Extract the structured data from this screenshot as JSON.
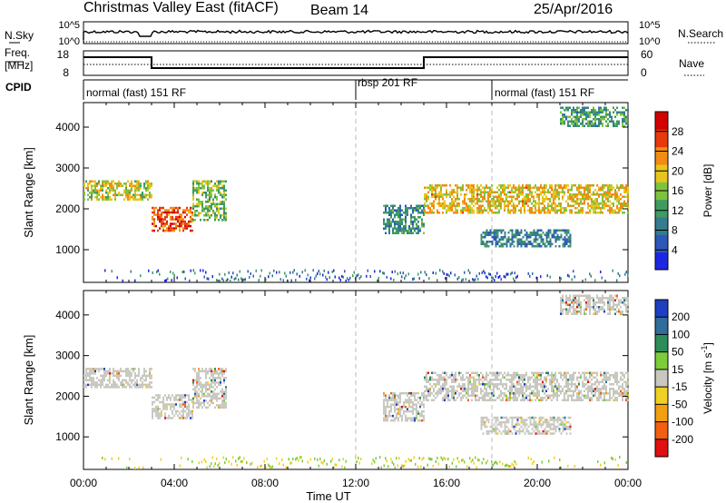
{
  "header": {
    "title": "Christmas Valley East (fitACF)",
    "beam": "Beam 14",
    "date": "25/Apr/2016"
  },
  "top_panels": {
    "nsky_label": "N.Sky",
    "nsky_ticks": [
      "10^5",
      "10^0"
    ],
    "nsearch_label": "N.Search",
    "nsearch_ticks": [
      "10^5",
      "10^0"
    ],
    "freq_label": "Freq.",
    "freq_unit": "[MHz]",
    "freq_ticks": [
      "18",
      "8"
    ],
    "nave_label": "Nave",
    "nave_ticks": [
      "60",
      "0"
    ],
    "cpid_label": "CPID",
    "cpid_segments": [
      {
        "name": "normal (fast) 151 RF",
        "start_h": 0
      },
      {
        "name": "rbsp 201 RF",
        "start_h": 12
      },
      {
        "name": "normal (fast) 151 RF",
        "start_h": 18
      }
    ],
    "freq_series": [
      {
        "h": 0,
        "mhz": 16.5
      },
      {
        "h": 3,
        "mhz": 16.5
      },
      {
        "h": 3,
        "mhz": 10.5
      },
      {
        "h": 15,
        "mhz": 10.5
      },
      {
        "h": 15,
        "mhz": 16.5
      },
      {
        "h": 24,
        "mhz": 16.5
      }
    ]
  },
  "chart_data": [
    {
      "type": "heatmap",
      "panel": "power",
      "ylabel": "Slant Range [km]",
      "yticks": [
        1000,
        2000,
        3000,
        4000
      ],
      "ylim": [
        200,
        4600
      ],
      "xlim": [
        0,
        24
      ],
      "colorbar_label": "Power [dB]",
      "colorbar_ticks": [
        4,
        8,
        12,
        16,
        20,
        24,
        28
      ],
      "colorbar_range": [
        0,
        32
      ],
      "colors": [
        "#1d26e0",
        "#2d58b8",
        "#357d8e",
        "#3f9b62",
        "#7fc23f",
        "#e6c61e",
        "#f28c12",
        "#e63a0c",
        "#d40000"
      ],
      "echo_regions": [
        {
          "h0": 0.0,
          "h1": 3.0,
          "range_lo": 2250,
          "range_hi": 2700,
          "power": 18
        },
        {
          "h0": 3.0,
          "h1": 4.8,
          "range_lo": 1450,
          "range_hi": 2050,
          "power": 26
        },
        {
          "h0": 4.8,
          "h1": 6.3,
          "range_lo": 1750,
          "range_hi": 2700,
          "power": 15
        },
        {
          "h0": 13.2,
          "h1": 15.0,
          "range_lo": 1400,
          "range_hi": 2100,
          "power": 10
        },
        {
          "h0": 15.0,
          "h1": 24.0,
          "range_lo": 1900,
          "range_hi": 2600,
          "power": 20
        },
        {
          "h0": 17.5,
          "h1": 21.5,
          "range_lo": 1100,
          "range_hi": 1500,
          "power": 9
        },
        {
          "h0": 21.0,
          "h1": 24.0,
          "range_lo": 4000,
          "range_hi": 4500,
          "power": 12
        }
      ]
    },
    {
      "type": "heatmap",
      "panel": "velocity",
      "ylabel": "Slant Range [km]",
      "yticks": [
        1000,
        2000,
        3000,
        4000
      ],
      "ylim": [
        200,
        4600
      ],
      "xlim": [
        0,
        24
      ],
      "xticks": [
        "00:00",
        "04:00",
        "08:00",
        "12:00",
        "16:00",
        "20:00",
        "00:00"
      ],
      "xlabel": "Time UT",
      "colorbar_label": "Velocity [m s^-1]",
      "colorbar_ticks": [
        200,
        100,
        50,
        15,
        -15,
        -50,
        -100,
        -200
      ],
      "colors": [
        "#1d3fc0",
        "#2f6d9b",
        "#2e8c5a",
        "#7ccc3c",
        "#c8c8c0",
        "#f0d020",
        "#f0a010",
        "#f06010",
        "#e01010"
      ],
      "echo_regions": [
        {
          "h0": 0.0,
          "h1": 3.0,
          "range_lo": 2250,
          "range_hi": 2700,
          "velocity": 0
        },
        {
          "h0": 3.0,
          "h1": 4.8,
          "range_lo": 1450,
          "range_hi": 2050,
          "velocity": 0
        },
        {
          "h0": 4.8,
          "h1": 6.3,
          "range_lo": 1750,
          "range_hi": 2700,
          "velocity": 0
        },
        {
          "h0": 13.2,
          "h1": 15.0,
          "range_lo": 1400,
          "range_hi": 2100,
          "velocity": 0
        },
        {
          "h0": 15.0,
          "h1": 24.0,
          "range_lo": 1900,
          "range_hi": 2600,
          "velocity": 0
        },
        {
          "h0": 17.5,
          "h1": 21.5,
          "range_lo": 1100,
          "range_hi": 1500,
          "velocity": 0
        },
        {
          "h0": 21.0,
          "h1": 24.0,
          "range_lo": 4000,
          "range_hi": 4500,
          "velocity": 0
        }
      ]
    }
  ]
}
